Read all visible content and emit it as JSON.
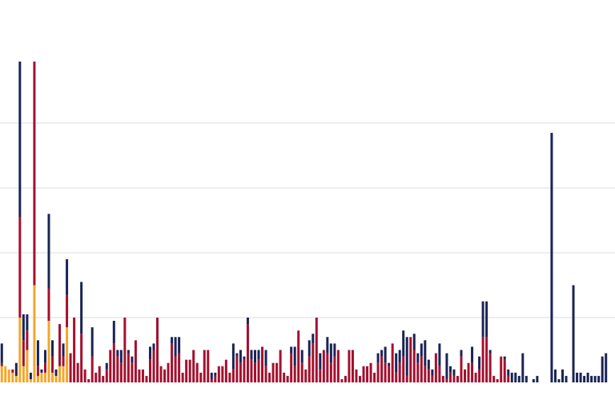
{
  "chart_data": {
    "type": "stacked-bar",
    "categories": [
      null,
      null,
      null,
      null,
      null,
      null,
      null,
      null,
      null,
      null,
      null,
      null,
      null,
      null,
      null,
      null,
      null,
      null,
      null,
      null,
      null,
      null,
      null,
      null,
      null,
      null,
      null,
      null,
      null,
      null,
      null,
      null,
      null,
      null,
      null,
      null,
      null,
      null,
      null,
      null,
      null,
      null,
      null,
      null,
      null,
      null,
      null,
      null,
      null,
      null,
      null,
      null,
      null,
      null,
      null,
      null,
      null,
      null,
      null,
      null,
      null,
      null,
      null,
      null,
      null,
      null,
      null,
      null,
      null,
      null,
      null,
      null,
      null,
      null,
      null,
      null,
      null,
      null,
      null,
      null,
      null,
      null,
      null,
      null,
      null,
      null,
      null,
      null,
      null,
      null,
      null,
      null,
      null,
      null,
      null,
      null,
      null,
      null,
      null,
      null,
      null,
      null,
      null,
      null,
      null,
      null,
      null,
      null,
      null,
      null,
      null,
      null,
      null,
      null,
      null,
      null,
      null,
      null,
      null,
      null,
      null,
      null,
      null,
      null,
      null,
      null,
      null,
      null,
      null,
      null,
      null,
      null,
      null,
      null,
      null,
      null,
      null,
      null,
      null,
      null,
      null,
      null,
      null,
      null,
      null,
      null,
      null,
      null,
      null,
      null,
      null,
      null,
      null,
      null,
      null,
      null,
      null,
      null,
      null,
      null,
      null,
      null,
      null,
      null,
      null,
      null,
      null,
      null,
      null,
      null
    ],
    "series": [
      {
        "color": "#f4a62a",
        "values": [
          5,
          5,
          4,
          3,
          2,
          20,
          5,
          10,
          1,
          30,
          2,
          3,
          3,
          19,
          3,
          2,
          5,
          5,
          17,
          0,
          0,
          0,
          0,
          0,
          0,
          0,
          0,
          0,
          0,
          0,
          0,
          0,
          0,
          0,
          0,
          0,
          0,
          0,
          0,
          0,
          0,
          0,
          0,
          0,
          0,
          0,
          0,
          0,
          0,
          0,
          0,
          0,
          0,
          0,
          0,
          0,
          0,
          0,
          0,
          0,
          0,
          0,
          0,
          0,
          0,
          0,
          0,
          0,
          0,
          0,
          0,
          0,
          0,
          0,
          0,
          0,
          0,
          0,
          0,
          0,
          0,
          0,
          0,
          0,
          0,
          0,
          0,
          0,
          0,
          0,
          0,
          0,
          0,
          0,
          0,
          0,
          0,
          0,
          0,
          0,
          0,
          0,
          0,
          0,
          0,
          0,
          0,
          0,
          0,
          0,
          0,
          0,
          0,
          0,
          0,
          0,
          0,
          0,
          0,
          0,
          0,
          0,
          0,
          0,
          0,
          0,
          0,
          0,
          0,
          0,
          0,
          0,
          0,
          0,
          0,
          0,
          0,
          0,
          0,
          0,
          0,
          0,
          0,
          0,
          0,
          0,
          0,
          0,
          0,
          0,
          0,
          0,
          0,
          0,
          0,
          0,
          0,
          0,
          0,
          0,
          0,
          0,
          0,
          0,
          0,
          0,
          0,
          0,
          0,
          0
        ]
      },
      {
        "color": "#a4102e",
        "values": [
          1,
          0,
          0,
          1,
          0,
          31,
          8,
          6,
          0,
          69,
          3,
          0,
          3,
          10,
          5,
          0,
          13,
          3,
          10,
          9,
          20,
          6,
          15,
          4,
          1,
          8,
          3,
          5,
          2,
          4,
          10,
          12,
          8,
          6,
          20,
          9,
          6,
          13,
          4,
          4,
          2,
          7,
          10,
          20,
          5,
          4,
          6,
          12,
          8,
          9,
          3,
          7,
          7,
          10,
          6,
          3,
          10,
          10,
          1,
          2,
          5,
          5,
          7,
          3,
          4,
          8,
          6,
          7,
          18,
          7,
          6,
          7,
          11,
          5,
          3,
          6,
          6,
          10,
          3,
          2,
          9,
          5,
          16,
          6,
          4,
          8,
          12,
          20,
          4,
          10,
          9,
          6,
          8,
          10,
          1,
          2,
          10,
          10,
          4,
          2,
          5,
          5,
          6,
          3,
          6,
          8,
          6,
          5,
          12,
          3,
          6,
          8,
          2,
          14,
          10,
          6,
          8,
          5,
          4,
          2,
          9,
          5,
          2,
          1,
          3,
          2,
          2,
          8,
          4,
          6,
          6,
          3,
          4,
          14,
          14,
          9,
          2,
          1,
          8,
          7,
          2,
          0,
          0,
          0,
          0,
          0,
          0,
          0,
          0,
          0,
          0,
          0,
          0,
          0,
          0,
          0,
          0,
          0,
          0,
          0,
          0,
          0,
          0,
          0,
          0,
          0,
          0,
          0,
          0,
          0
        ]
      },
      {
        "color": "#1a2456",
        "values": [
          6,
          0,
          0,
          0,
          4,
          48,
          8,
          5,
          2,
          0,
          8,
          1,
          4,
          23,
          5,
          2,
          0,
          4,
          11,
          0,
          0,
          0,
          16,
          0,
          0,
          9,
          0,
          0,
          0,
          2,
          0,
          7,
          2,
          4,
          0,
          1,
          2,
          0,
          0,
          0,
          0,
          4,
          2,
          0,
          0,
          0,
          0,
          2,
          6,
          5,
          0,
          0,
          0,
          0,
          0,
          0,
          0,
          0,
          2,
          1,
          0,
          0,
          0,
          0,
          8,
          1,
          4,
          1,
          2,
          3,
          4,
          3,
          0,
          5,
          0,
          0,
          0,
          0,
          0,
          0,
          2,
          6,
          0,
          4,
          0,
          5,
          3,
          0,
          5,
          0,
          5,
          6,
          4,
          0,
          0,
          0,
          0,
          0,
          0,
          0,
          0,
          0,
          0,
          0,
          3,
          2,
          5,
          1,
          0,
          6,
          4,
          8,
          12,
          0,
          5,
          3,
          4,
          8,
          3,
          2,
          0,
          7,
          0,
          8,
          2,
          2,
          0,
          2,
          0,
          0,
          5,
          0,
          4,
          11,
          11,
          1,
          0,
          0,
          0,
          1,
          2,
          3,
          3,
          2,
          9,
          2,
          0,
          1,
          2,
          0,
          0,
          0,
          77,
          4,
          1,
          4,
          2,
          0,
          30,
          3,
          3,
          2,
          3,
          2,
          2,
          2,
          8,
          9,
          0,
          0
        ]
      }
    ],
    "ylim": [
      0,
      118
    ],
    "yticks": [
      20,
      40,
      60,
      80
    ],
    "grid": true
  }
}
